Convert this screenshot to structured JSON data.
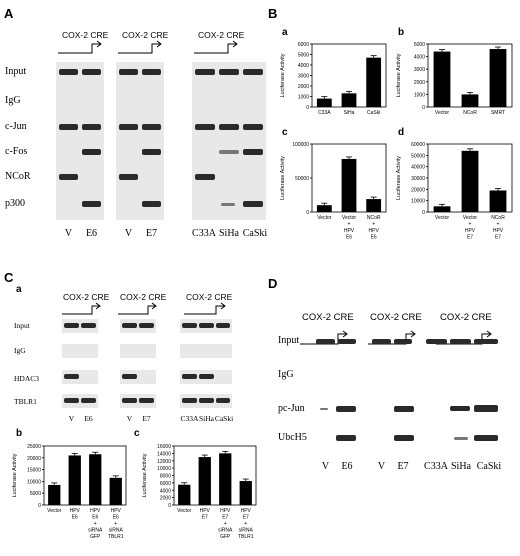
{
  "figure": {
    "panels": {
      "A": "A",
      "B": "B",
      "C": "C",
      "D": "D"
    },
    "sub": {
      "a": "a",
      "b": "b",
      "c": "c",
      "d": "d"
    },
    "cre_label": "COX-2 CRE",
    "panelA": {
      "rows": [
        "Input",
        "IgG",
        "c-Jun",
        "c-Fos",
        "NCoR",
        "p300"
      ],
      "lanes": [
        "V",
        "E6",
        "V",
        "E7",
        "C33A",
        "SiHa",
        "CaSki"
      ]
    },
    "panelC": {
      "rows": [
        "Input",
        "IgG",
        "HDAC3",
        "TBLR1"
      ],
      "lanes": [
        "V",
        "E6",
        "V",
        "E7",
        "C33A",
        "SiHa",
        "CaSki"
      ]
    },
    "panelD": {
      "rows": [
        "Input",
        "IgG",
        "pc-Jun",
        "UbcH5"
      ],
      "lanes": [
        "V",
        "E6",
        "V",
        "E7",
        "C33A",
        "SiHa",
        "CaSki"
      ]
    }
  },
  "chart_data": [
    {
      "id": "Ba",
      "type": "bar",
      "ylabel": "Luciferase Activity",
      "categories": [
        "C33A",
        "SiHa",
        "CaSki"
      ],
      "values": [
        800,
        1300,
        4700
      ],
      "ylim": [
        0,
        6000
      ],
      "yticks": [
        0,
        1000,
        2000,
        3000,
        4000,
        5000,
        6000
      ]
    },
    {
      "id": "Bb",
      "type": "bar",
      "ylabel": "Luciferase Activity",
      "categories": [
        "Vector",
        "NCoR",
        "SMRT"
      ],
      "values": [
        4400,
        1000,
        4600
      ],
      "ylim": [
        0,
        5000
      ],
      "yticks": [
        0,
        1000,
        2000,
        3000,
        4000,
        5000
      ]
    },
    {
      "id": "Bc",
      "type": "bar",
      "ylabel": "Luciferase Activity",
      "categories": [
        "Vector",
        "Vector + HPV E6",
        "NCoR + HPV E6"
      ],
      "values": [
        10000,
        78000,
        19000
      ],
      "ylim": [
        0,
        100000
      ],
      "yticks": [
        0,
        50000,
        100000,
        150000
      ]
    },
    {
      "id": "Bd",
      "type": "bar",
      "ylabel": "Luciferase Activity",
      "categories": [
        "Vector",
        "Vector + HPV E7",
        "NCoR + HPV E7"
      ],
      "values": [
        5000,
        54000,
        19000
      ],
      "ylim": [
        0,
        60000
      ],
      "yticks": [
        0,
        10000,
        20000,
        30000,
        40000,
        50000,
        60000
      ]
    },
    {
      "id": "Cb",
      "type": "bar",
      "ylabel": "Luciferase Activity",
      "categories": [
        "Vector",
        "HPV E6",
        "HPV E6 + siRNA GFP",
        "HPV E6 + siRNA TBLR1"
      ],
      "values": [
        8500,
        21000,
        21500,
        11500
      ],
      "ylim": [
        0,
        25000
      ],
      "yticks": [
        0,
        5000,
        10000,
        15000,
        20000,
        25000
      ]
    },
    {
      "id": "Cc",
      "type": "bar",
      "ylabel": "Luciferase Activity",
      "categories": [
        "Vector",
        "HPV E7",
        "HPV E7 + siRNA GFP",
        "HPV E7 + siRNA TBLR1"
      ],
      "values": [
        5500,
        13000,
        14000,
        6500
      ],
      "ylim": [
        0,
        16000
      ],
      "yticks": [
        0,
        2000,
        4000,
        6000,
        8000,
        10000,
        12000,
        14000,
        16000
      ]
    }
  ]
}
